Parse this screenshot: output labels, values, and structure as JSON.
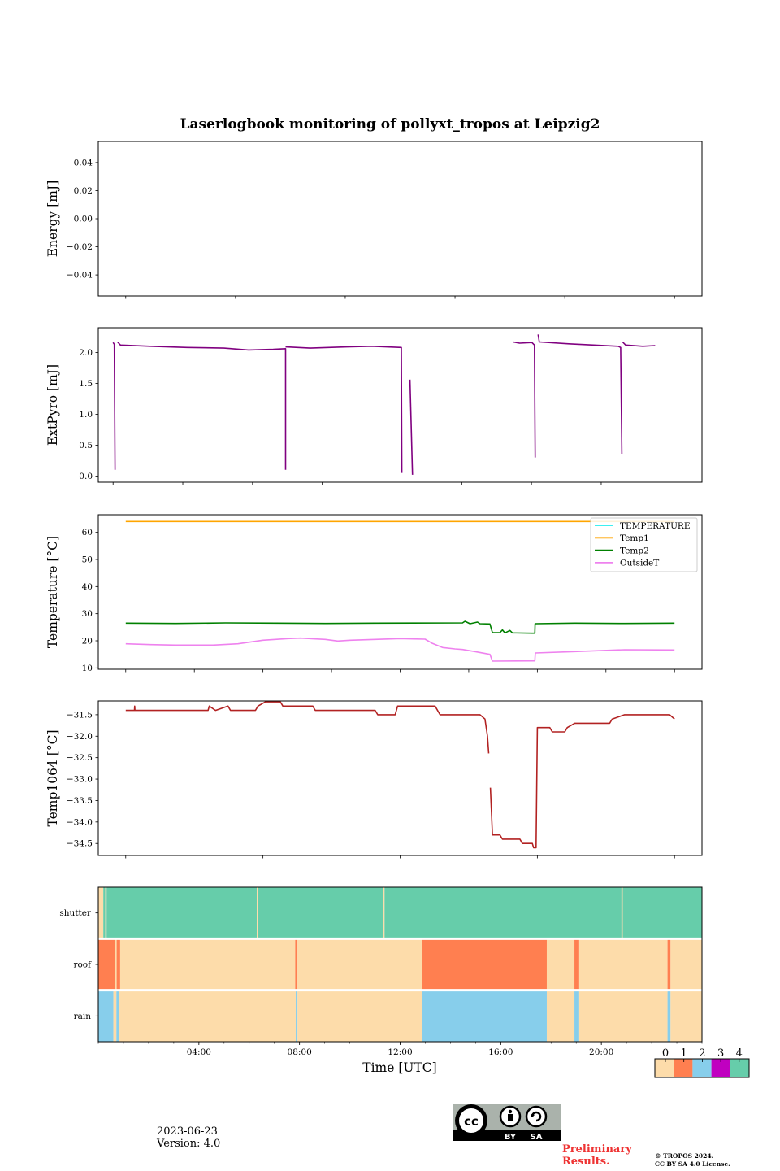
{
  "figure": {
    "title": "Laserlogbook monitoring of pollyxt_tropos at Leipzig2",
    "footer": {
      "date": "2023-06-23",
      "version": "Version: 4.0",
      "preliminary_line1": "Preliminary",
      "preliminary_line2": "Results.",
      "copyright_line1": "© TROPOS 2024.",
      "copyright_line2": "CC BY SA 4.0 License.",
      "cc_badge": {
        "by": "BY",
        "sa": "SA",
        "icon": "cc-by-sa-icon"
      }
    }
  },
  "chart_data": [
    {
      "type": "line",
      "name": "energy",
      "title": "",
      "ylabel": "Energy [mJ]",
      "xlabel": "",
      "ylim": [
        -0.055,
        0.055
      ],
      "yticks": [
        -0.04,
        -0.02,
        0.0,
        0.02,
        0.04
      ],
      "ytick_labels": [
        "−0.04",
        "−0.02",
        "0.00",
        "0.02",
        "0.04"
      ],
      "xlim_hours": [
        -1.1,
        23.1
      ],
      "xticks_hours": [
        0,
        4.4,
        8.8,
        13.2,
        17.6,
        22
      ],
      "series": []
    },
    {
      "type": "line",
      "name": "extpyro",
      "ylabel": "ExtPyro [mJ]",
      "ylim": [
        -0.1,
        2.4
      ],
      "yticks": [
        0.0,
        0.5,
        1.0,
        1.5,
        2.0
      ],
      "ytick_labels": [
        "0.0",
        "0.5",
        "1.0",
        "1.5",
        "2.0"
      ],
      "xlim_hours": [
        -0.6,
        23.9
      ],
      "xticks_hours": [
        0,
        2.83,
        5.66,
        8.49,
        11.32,
        14.15,
        16.98,
        19.81,
        22.04
      ],
      "series": [
        {
          "name": "ExtPyro",
          "color": "#800080",
          "segments": [
            [
              [
                0.0,
                2.16
              ],
              [
                0.05,
                2.13
              ],
              [
                0.08,
                0.1
              ]
            ],
            [
              [
                0.18,
                2.17
              ],
              [
                0.3,
                2.12
              ],
              [
                1.5,
                2.1
              ],
              [
                3.0,
                2.08
              ],
              [
                4.5,
                2.07
              ],
              [
                5.5,
                2.04
              ],
              [
                6.5,
                2.05
              ],
              [
                7.0,
                2.06
              ],
              [
                7.0,
                0.1
              ]
            ],
            [
              [
                7.0,
                2.09
              ],
              [
                8.0,
                2.07
              ],
              [
                9.5,
                2.09
              ],
              [
                10.5,
                2.1
              ],
              [
                11.7,
                2.08
              ],
              [
                11.72,
                0.05
              ]
            ],
            [
              [
                12.05,
                1.56
              ],
              [
                12.15,
                0.02
              ]
            ],
            [
              [
                16.23,
                2.17
              ],
              [
                16.5,
                2.15
              ],
              [
                17.0,
                2.16
              ],
              [
                17.1,
                2.12
              ],
              [
                17.13,
                0.3
              ]
            ],
            [
              [
                17.25,
                2.29
              ],
              [
                17.3,
                2.17
              ],
              [
                18.5,
                2.14
              ],
              [
                19.5,
                2.12
              ],
              [
                20.5,
                2.1
              ],
              [
                20.6,
                2.08
              ],
              [
                20.65,
                0.36
              ]
            ],
            [
              [
                20.68,
                2.17
              ],
              [
                20.8,
                2.12
              ],
              [
                21.5,
                2.1
              ],
              [
                22.0,
                2.11
              ]
            ]
          ]
        }
      ]
    },
    {
      "type": "line",
      "name": "temperature",
      "ylabel": "Temperature [°C]",
      "ylim": [
        9.5,
        66.5
      ],
      "yticks": [
        10,
        20,
        30,
        40,
        50,
        60
      ],
      "ytick_labels": [
        "10",
        "20",
        "30",
        "40",
        "50",
        "60"
      ],
      "xlim_hours": [
        -1.1,
        23.1
      ],
      "xticks_hours": [
        0,
        2.75,
        5.5,
        8.25,
        11.0,
        13.75,
        16.5,
        19.25,
        22.0
      ],
      "legend": {
        "placement": "top-right",
        "entries": [
          "TEMPERATURE",
          "Temp1",
          "Temp2",
          "OutsideT"
        ]
      },
      "series": [
        {
          "name": "TEMPERATURE",
          "color": "#22eeee",
          "points": []
        },
        {
          "name": "Temp1",
          "color": "#ffa500",
          "points": [
            [
              0,
              64
            ],
            [
              22,
              64
            ]
          ]
        },
        {
          "name": "Temp2",
          "color": "#008000",
          "points": [
            [
              0,
              26.5
            ],
            [
              2,
              26.4
            ],
            [
              4,
              26.6
            ],
            [
              6,
              26.5
            ],
            [
              8,
              26.4
            ],
            [
              10,
              26.5
            ],
            [
              13.5,
              26.6
            ],
            [
              13.6,
              27.2
            ],
            [
              13.8,
              26.3
            ],
            [
              14.1,
              26.9
            ],
            [
              14.2,
              26.3
            ],
            [
              14.6,
              26.2
            ],
            [
              14.7,
              23.0
            ],
            [
              15.0,
              23.0
            ],
            [
              15.1,
              24.0
            ],
            [
              15.2,
              22.9
            ],
            [
              15.4,
              23.8
            ],
            [
              15.5,
              22.9
            ],
            [
              16.3,
              22.8
            ],
            [
              16.4,
              22.8
            ],
            [
              16.41,
              26.3
            ],
            [
              18,
              26.5
            ],
            [
              20,
              26.4
            ],
            [
              22,
              26.5
            ]
          ]
        },
        {
          "name": "OutsideT",
          "color": "#ee82ee",
          "points": [
            [
              0,
              18.9
            ],
            [
              1,
              18.6
            ],
            [
              2,
              18.4
            ],
            [
              3.5,
              18.4
            ],
            [
              4.5,
              18.9
            ],
            [
              5.5,
              20.2
            ],
            [
              6.5,
              20.8
            ],
            [
              7.0,
              21.0
            ],
            [
              8.0,
              20.5
            ],
            [
              8.5,
              19.9
            ],
            [
              9.0,
              20.2
            ],
            [
              10,
              20.5
            ],
            [
              11,
              20.8
            ],
            [
              12,
              20.6
            ],
            [
              12.3,
              19.0
            ],
            [
              12.7,
              17.5
            ],
            [
              13.2,
              17.0
            ],
            [
              13.5,
              16.8
            ],
            [
              14.0,
              16.0
            ],
            [
              14.6,
              15.0
            ],
            [
              14.7,
              12.5
            ],
            [
              16.4,
              12.6
            ],
            [
              16.42,
              15.5
            ],
            [
              18,
              16.0
            ],
            [
              20,
              16.7
            ],
            [
              22,
              16.6
            ]
          ]
        }
      ]
    },
    {
      "type": "line",
      "name": "temp1064",
      "ylabel": "Temp1064 [°C]",
      "ylim": [
        -34.78,
        -31.18
      ],
      "yticks": [
        -34.5,
        -34.0,
        -33.5,
        -33.0,
        -32.5,
        -32.0,
        -31.5
      ],
      "ytick_labels": [
        "−34.5",
        "−34.0",
        "−33.5",
        "−33.0",
        "−32.5",
        "−32.0",
        "−31.5"
      ],
      "xlim_hours": [
        -1.1,
        23.1
      ],
      "xticks_hours": [
        0,
        5.5,
        11.0,
        16.5,
        22.0
      ],
      "series": [
        {
          "name": "Temp1064",
          "color": "#b22222",
          "segments": [
            [
              [
                0,
                -31.4
              ],
              [
                0.35,
                -31.4
              ],
              [
                0.36,
                -31.3
              ],
              [
                0.37,
                -31.4
              ],
              [
                3.3,
                -31.4
              ],
              [
                3.35,
                -31.3
              ],
              [
                3.6,
                -31.4
              ],
              [
                4.1,
                -31.3
              ],
              [
                4.2,
                -31.4
              ],
              [
                5.2,
                -31.4
              ],
              [
                5.3,
                -31.3
              ],
              [
                5.6,
                -31.2
              ],
              [
                6.2,
                -31.2
              ],
              [
                6.3,
                -31.3
              ],
              [
                7.5,
                -31.3
              ],
              [
                7.6,
                -31.4
              ],
              [
                8.7,
                -31.4
              ],
              [
                10.0,
                -31.4
              ],
              [
                10.1,
                -31.5
              ],
              [
                10.8,
                -31.5
              ],
              [
                10.9,
                -31.3
              ],
              [
                12.4,
                -31.3
              ],
              [
                12.6,
                -31.5
              ],
              [
                14.2,
                -31.5
              ],
              [
                14.4,
                -31.6
              ],
              [
                14.5,
                -32.0
              ],
              [
                14.55,
                -32.4
              ]
            ],
            [
              [
                14.62,
                -33.2
              ],
              [
                14.7,
                -34.3
              ],
              [
                15.0,
                -34.3
              ],
              [
                15.1,
                -34.4
              ],
              [
                15.8,
                -34.4
              ],
              [
                15.9,
                -34.5
              ],
              [
                16.3,
                -34.5
              ],
              [
                16.35,
                -34.6
              ],
              [
                16.45,
                -34.6
              ],
              [
                16.5,
                -31.8
              ],
              [
                17.0,
                -31.8
              ],
              [
                17.1,
                -31.9
              ],
              [
                17.6,
                -31.9
              ],
              [
                17.7,
                -31.8
              ],
              [
                18.0,
                -31.7
              ],
              [
                19.4,
                -31.7
              ],
              [
                19.5,
                -31.6
              ],
              [
                20.0,
                -31.5
              ],
              [
                21.8,
                -31.5
              ],
              [
                22.0,
                -31.6
              ]
            ]
          ]
        }
      ]
    },
    {
      "type": "heatmap",
      "name": "status",
      "xlabel": "Time [UTC]",
      "xlim_hours": [
        0,
        24
      ],
      "xtick_labels": [
        "04:00",
        "08:00",
        "12:00",
        "16:00",
        "20:00"
      ],
      "xticks_hours": [
        4,
        8,
        12,
        16,
        20
      ],
      "rows": [
        "shutter",
        "roof",
        "rain"
      ],
      "colorbar": {
        "values": [
          0,
          1,
          2,
          3,
          4
        ],
        "labels": [
          "0",
          "1",
          "2",
          "3",
          "4"
        ],
        "colors": [
          "#fddcaa",
          "#ff7f50",
          "#87ceeb",
          "#c000c0",
          "#66cdaa"
        ]
      },
      "intervals": {
        "shutter": [
          [
            0,
            0.2,
            0
          ],
          [
            0.2,
            0.28,
            4
          ],
          [
            0.28,
            0.33,
            0
          ],
          [
            0.33,
            6.3,
            4
          ],
          [
            6.3,
            6.35,
            0
          ],
          [
            6.35,
            11.33,
            4
          ],
          [
            11.33,
            11.38,
            0
          ],
          [
            11.38,
            20.8,
            4
          ],
          [
            20.8,
            20.85,
            0
          ],
          [
            20.85,
            24,
            4
          ]
        ],
        "roof": [
          [
            0,
            0.65,
            1
          ],
          [
            0.65,
            0.73,
            0
          ],
          [
            0.73,
            0.87,
            1
          ],
          [
            0.87,
            7.83,
            0
          ],
          [
            7.83,
            7.92,
            1
          ],
          [
            7.92,
            12.87,
            0
          ],
          [
            12.87,
            17.83,
            1
          ],
          [
            17.83,
            18.93,
            0
          ],
          [
            18.93,
            19.12,
            1
          ],
          [
            19.12,
            22.63,
            0
          ],
          [
            22.63,
            22.75,
            1
          ],
          [
            22.75,
            24,
            0
          ]
        ],
        "rain": [
          [
            0,
            0.6,
            2
          ],
          [
            0.6,
            0.72,
            0
          ],
          [
            0.72,
            0.83,
            2
          ],
          [
            0.83,
            7.85,
            0
          ],
          [
            7.85,
            7.92,
            2
          ],
          [
            7.92,
            12.87,
            0
          ],
          [
            12.87,
            17.83,
            2
          ],
          [
            17.83,
            18.93,
            0
          ],
          [
            18.93,
            19.12,
            2
          ],
          [
            19.12,
            22.63,
            0
          ],
          [
            22.63,
            22.75,
            2
          ],
          [
            22.75,
            24,
            0
          ]
        ]
      }
    }
  ]
}
